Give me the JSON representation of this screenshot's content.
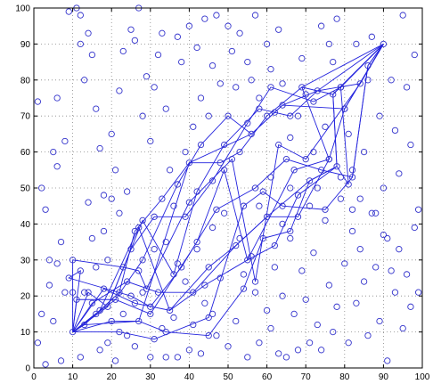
{
  "chart_data": {
    "type": "scatter",
    "title": "",
    "xlabel": "",
    "ylabel": "",
    "xlim": [
      0,
      100
    ],
    "ylim": [
      0,
      100
    ],
    "x_ticks": [
      0,
      10,
      20,
      30,
      40,
      50,
      60,
      70,
      80,
      90,
      100
    ],
    "y_ticks": [
      0,
      10,
      20,
      30,
      40,
      50,
      60,
      70,
      80,
      90,
      100
    ],
    "grid": true,
    "colors": {
      "marker": "#3333cc",
      "line": "#2222dd",
      "grid": "#888888",
      "axes": "#000000"
    },
    "hubs": {
      "start": [
        10,
        10
      ],
      "end": [
        90,
        90
      ]
    },
    "points": [
      [
        1,
        74
      ],
      [
        2,
        50
      ],
      [
        3,
        44
      ],
      [
        4,
        30
      ],
      [
        5,
        60
      ],
      [
        6,
        56
      ],
      [
        6,
        75
      ],
      [
        7,
        35
      ],
      [
        8,
        63
      ],
      [
        9,
        99
      ],
      [
        10,
        21
      ],
      [
        11,
        100
      ],
      [
        12,
        98
      ],
      [
        12,
        90
      ],
      [
        13,
        80
      ],
      [
        14,
        93
      ],
      [
        15,
        87
      ],
      [
        16,
        72
      ],
      [
        17,
        61
      ],
      [
        18,
        38
      ],
      [
        19,
        30
      ],
      [
        20,
        65
      ],
      [
        21,
        55
      ],
      [
        22,
        77
      ],
      [
        23,
        88
      ],
      [
        24,
        49
      ],
      [
        25,
        94
      ],
      [
        26,
        91
      ],
      [
        27,
        100
      ],
      [
        28,
        70
      ],
      [
        29,
        81
      ],
      [
        30,
        63
      ],
      [
        31,
        78
      ],
      [
        32,
        87
      ],
      [
        33,
        93
      ],
      [
        34,
        72
      ],
      [
        35,
        55
      ],
      [
        36,
        45
      ],
      [
        37,
        92
      ],
      [
        38,
        85
      ],
      [
        39,
        60
      ],
      [
        40,
        95
      ],
      [
        41,
        67
      ],
      [
        42,
        89
      ],
      [
        43,
        75
      ],
      [
        44,
        97
      ],
      [
        45,
        70
      ],
      [
        46,
        84
      ],
      [
        47,
        98
      ],
      [
        48,
        79
      ],
      [
        50,
        95
      ],
      [
        51,
        88
      ],
      [
        52,
        78
      ],
      [
        53,
        93
      ],
      [
        55,
        85
      ],
      [
        56,
        80
      ],
      [
        57,
        98
      ],
      [
        58,
        75
      ],
      [
        60,
        90
      ],
      [
        61,
        83
      ],
      [
        62,
        71
      ],
      [
        63,
        94
      ],
      [
        64,
        79
      ],
      [
        66,
        64
      ],
      [
        68,
        70
      ],
      [
        69,
        86
      ],
      [
        70,
        76
      ],
      [
        72,
        60
      ],
      [
        74,
        95
      ],
      [
        75,
        67
      ],
      [
        76,
        90
      ],
      [
        77,
        85
      ],
      [
        78,
        97
      ],
      [
        79,
        78
      ],
      [
        80,
        72
      ],
      [
        81,
        65
      ],
      [
        82,
        55
      ],
      [
        83,
        90
      ],
      [
        84,
        47
      ],
      [
        85,
        60
      ],
      [
        86,
        80
      ],
      [
        87,
        92
      ],
      [
        88,
        43
      ],
      [
        89,
        70
      ],
      [
        90,
        50
      ],
      [
        91,
        36
      ],
      [
        92,
        80
      ],
      [
        93,
        66
      ],
      [
        94,
        54
      ],
      [
        95,
        98
      ],
      [
        96,
        78
      ],
      [
        97,
        62
      ],
      [
        98,
        87
      ],
      [
        99,
        44
      ],
      [
        1,
        7
      ],
      [
        2,
        15
      ],
      [
        3,
        1
      ],
      [
        4,
        23
      ],
      [
        5,
        13
      ],
      [
        6,
        29
      ],
      [
        7,
        2
      ],
      [
        8,
        21
      ],
      [
        12,
        3
      ],
      [
        13,
        21
      ],
      [
        15,
        36
      ],
      [
        17,
        5
      ],
      [
        19,
        7
      ],
      [
        20,
        47
      ],
      [
        21,
        2
      ],
      [
        23,
        15
      ],
      [
        24,
        9
      ],
      [
        26,
        6
      ],
      [
        28,
        21
      ],
      [
        30,
        3
      ],
      [
        33,
        11
      ],
      [
        34,
        3
      ],
      [
        36,
        14
      ],
      [
        37,
        3
      ],
      [
        39,
        24
      ],
      [
        40,
        5
      ],
      [
        41,
        12
      ],
      [
        43,
        4
      ],
      [
        44,
        18
      ],
      [
        46,
        15
      ],
      [
        47,
        9
      ],
      [
        48,
        25
      ],
      [
        50,
        6
      ],
      [
        52,
        13
      ],
      [
        54,
        26
      ],
      [
        55,
        3
      ],
      [
        57,
        21
      ],
      [
        58,
        7
      ],
      [
        60,
        16
      ],
      [
        61,
        11
      ],
      [
        62,
        28
      ],
      [
        63,
        4
      ],
      [
        64,
        20
      ],
      [
        65,
        3
      ],
      [
        66,
        36
      ],
      [
        67,
        15
      ],
      [
        68,
        5
      ],
      [
        69,
        27
      ],
      [
        70,
        19
      ],
      [
        71,
        7
      ],
      [
        72,
        32
      ],
      [
        73,
        12
      ],
      [
        74,
        5
      ],
      [
        75,
        41
      ],
      [
        76,
        23
      ],
      [
        77,
        10
      ],
      [
        78,
        17
      ],
      [
        79,
        47
      ],
      [
        80,
        29
      ],
      [
        81,
        7
      ],
      [
        82,
        38
      ],
      [
        83,
        18
      ],
      [
        84,
        33
      ],
      [
        85,
        24
      ],
      [
        86,
        9
      ],
      [
        87,
        43
      ],
      [
        88,
        28
      ],
      [
        89,
        13
      ],
      [
        90,
        37
      ],
      [
        91,
        2
      ],
      [
        92,
        27
      ],
      [
        93,
        21
      ],
      [
        94,
        33
      ],
      [
        95,
        11
      ],
      [
        96,
        26
      ],
      [
        97,
        17
      ],
      [
        98,
        39
      ],
      [
        99,
        21
      ],
      [
        14,
        46
      ],
      [
        16,
        28
      ],
      [
        18,
        48
      ],
      [
        22,
        43
      ],
      [
        27,
        39
      ],
      [
        31,
        33
      ],
      [
        34,
        35
      ],
      [
        37,
        29
      ],
      [
        42,
        33
      ],
      [
        46,
        39
      ],
      [
        49,
        43
      ],
      [
        53,
        36
      ],
      [
        56,
        31
      ],
      [
        58,
        45
      ],
      [
        61,
        53
      ],
      [
        64,
        40
      ],
      [
        66,
        50
      ],
      [
        68,
        48
      ],
      [
        71,
        45
      ],
      [
        73,
        50
      ],
      [
        76,
        58
      ],
      [
        79,
        53
      ],
      [
        82,
        44
      ]
    ],
    "path_nodes": [
      [
        9,
        25
      ],
      [
        10,
        30
      ],
      [
        11,
        19
      ],
      [
        12,
        27
      ],
      [
        13,
        12
      ],
      [
        14,
        21
      ],
      [
        15,
        18
      ],
      [
        16,
        15
      ],
      [
        17,
        16
      ],
      [
        18,
        22
      ],
      [
        19,
        17
      ],
      [
        20,
        13
      ],
      [
        21,
        19
      ],
      [
        22,
        21
      ],
      [
        22,
        10
      ],
      [
        23,
        28
      ],
      [
        24,
        24
      ],
      [
        25,
        33
      ],
      [
        25,
        20
      ],
      [
        26,
        38
      ],
      [
        26,
        18
      ],
      [
        27,
        13
      ],
      [
        27,
        27
      ],
      [
        28,
        30
      ],
      [
        28,
        41
      ],
      [
        29,
        22
      ],
      [
        30,
        15
      ],
      [
        30,
        17
      ],
      [
        31,
        8
      ],
      [
        31,
        42
      ],
      [
        32,
        21
      ],
      [
        33,
        47
      ],
      [
        34,
        10
      ],
      [
        35,
        16
      ],
      [
        36,
        26
      ],
      [
        37,
        51
      ],
      [
        38,
        28
      ],
      [
        39,
        42
      ],
      [
        40,
        46
      ],
      [
        40,
        57
      ],
      [
        41,
        21
      ],
      [
        42,
        35
      ],
      [
        42,
        49
      ],
      [
        43,
        62
      ],
      [
        44,
        23
      ],
      [
        45,
        14
      ],
      [
        45,
        9
      ],
      [
        45,
        28
      ],
      [
        46,
        52
      ],
      [
        47,
        44
      ],
      [
        48,
        57
      ],
      [
        49,
        55
      ],
      [
        49,
        62
      ],
      [
        50,
        70
      ],
      [
        51,
        58
      ],
      [
        52,
        34
      ],
      [
        53,
        60
      ],
      [
        54,
        22
      ],
      [
        54,
        45
      ],
      [
        55,
        30
      ],
      [
        55,
        68
      ],
      [
        56,
        65
      ],
      [
        57,
        24
      ],
      [
        57,
        50
      ],
      [
        58,
        72
      ],
      [
        59,
        49
      ],
      [
        59,
        36
      ],
      [
        60,
        70
      ],
      [
        60,
        42
      ],
      [
        61,
        78
      ],
      [
        62,
        34
      ],
      [
        63,
        62
      ],
      [
        64,
        45
      ],
      [
        64,
        73
      ],
      [
        65,
        58
      ],
      [
        66,
        38
      ],
      [
        66,
        70
      ],
      [
        67,
        55
      ],
      [
        68,
        42
      ],
      [
        69,
        78
      ],
      [
        70,
        58
      ],
      [
        71,
        52
      ],
      [
        72,
        74
      ],
      [
        73,
        77
      ],
      [
        74,
        55
      ],
      [
        75,
        44
      ],
      [
        76,
        58
      ],
      [
        77,
        76
      ],
      [
        78,
        56
      ],
      [
        79,
        78
      ],
      [
        80,
        72
      ],
      [
        81,
        51
      ],
      [
        82,
        53
      ],
      [
        84,
        79
      ],
      [
        86,
        84
      ]
    ],
    "paths": [
      [
        [
          10,
          10
        ],
        [
          13,
          12
        ],
        [
          17,
          16
        ],
        [
          22,
          21
        ],
        [
          26,
          38
        ],
        [
          33,
          47
        ],
        [
          40,
          57
        ],
        [
          48,
          57
        ],
        [
          53,
          60
        ],
        [
          60,
          70
        ],
        [
          69,
          78
        ],
        [
          77,
          76
        ],
        [
          90,
          90
        ]
      ],
      [
        [
          10,
          10
        ],
        [
          16,
          15
        ],
        [
          21,
          19
        ],
        [
          28,
          30
        ],
        [
          37,
          51
        ],
        [
          43,
          62
        ],
        [
          50,
          70
        ],
        [
          56,
          65
        ],
        [
          64,
          73
        ],
        [
          73,
          77
        ],
        [
          84,
          79
        ],
        [
          90,
          90
        ]
      ],
      [
        [
          10,
          10
        ],
        [
          14,
          21
        ],
        [
          19,
          17
        ],
        [
          25,
          33
        ],
        [
          31,
          42
        ],
        [
          39,
          42
        ],
        [
          46,
          52
        ],
        [
          55,
          68
        ],
        [
          61,
          78
        ],
        [
          72,
          74
        ],
        [
          79,
          78
        ],
        [
          90,
          90
        ]
      ],
      [
        [
          10,
          10
        ],
        [
          20,
          13
        ],
        [
          27,
          13
        ],
        [
          34,
          10
        ],
        [
          45,
          9
        ],
        [
          54,
          22
        ],
        [
          59,
          36
        ],
        [
          66,
          38
        ],
        [
          71,
          52
        ],
        [
          78,
          56
        ],
        [
          77,
          76
        ],
        [
          90,
          90
        ]
      ],
      [
        [
          10,
          10
        ],
        [
          15,
          18
        ],
        [
          24,
          24
        ],
        [
          32,
          21
        ],
        [
          41,
          21
        ],
        [
          52,
          34
        ],
        [
          60,
          42
        ],
        [
          68,
          42
        ],
        [
          76,
          58
        ],
        [
          80,
          72
        ],
        [
          90,
          90
        ]
      ],
      [
        [
          10,
          10
        ],
        [
          12,
          27
        ],
        [
          9,
          25
        ],
        [
          25,
          20
        ],
        [
          30,
          17
        ],
        [
          38,
          28
        ],
        [
          47,
          44
        ],
        [
          57,
          50
        ],
        [
          65,
          58
        ],
        [
          74,
          55
        ],
        [
          82,
          53
        ],
        [
          86,
          84
        ],
        [
          90,
          90
        ]
      ],
      [
        [
          10,
          10
        ],
        [
          18,
          22
        ],
        [
          26,
          18
        ],
        [
          35,
          16
        ],
        [
          44,
          23
        ],
        [
          55,
          30
        ],
        [
          62,
          34
        ],
        [
          68,
          48
        ],
        [
          78,
          56
        ],
        [
          81,
          51
        ],
        [
          79,
          78
        ],
        [
          90,
          90
        ]
      ],
      [
        [
          10,
          10
        ],
        [
          22,
          10
        ],
        [
          31,
          8
        ],
        [
          45,
          14
        ],
        [
          54,
          45
        ],
        [
          59,
          49
        ],
        [
          64,
          45
        ],
        [
          75,
          44
        ],
        [
          82,
          53
        ],
        [
          86,
          84
        ],
        [
          90,
          90
        ]
      ],
      [
        [
          10,
          10
        ],
        [
          19,
          17
        ],
        [
          28,
          41
        ],
        [
          36,
          26
        ],
        [
          42,
          49
        ],
        [
          49,
          62
        ],
        [
          58,
          72
        ],
        [
          66,
          70
        ],
        [
          73,
          77
        ],
        [
          90,
          90
        ]
      ],
      [
        [
          10,
          10
        ],
        [
          10,
          30
        ],
        [
          23,
          28
        ],
        [
          27,
          27
        ],
        [
          29,
          22
        ],
        [
          40,
          46
        ],
        [
          51,
          58
        ],
        [
          57,
          24
        ],
        [
          63,
          62
        ],
        [
          70,
          58
        ],
        [
          84,
          79
        ],
        [
          90,
          90
        ]
      ],
      [
        [
          10,
          10
        ],
        [
          11,
          19
        ],
        [
          21,
          19
        ],
        [
          30,
          15
        ],
        [
          42,
          35
        ],
        [
          49,
          55
        ],
        [
          55,
          30
        ],
        [
          67,
          55
        ],
        [
          76,
          58
        ],
        [
          69,
          78
        ],
        [
          90,
          90
        ]
      ],
      [
        [
          10,
          10
        ],
        [
          17,
          16
        ],
        [
          27,
          39
        ],
        [
          35,
          16
        ],
        [
          45,
          28
        ],
        [
          52,
          34
        ],
        [
          60,
          42
        ],
        [
          71,
          52
        ],
        [
          78,
          56
        ],
        [
          77,
          76
        ],
        [
          90,
          90
        ]
      ],
      [
        [
          10,
          10
        ],
        [
          13,
          12
        ],
        [
          27,
          13
        ],
        [
          40,
          57
        ],
        [
          56,
          65
        ],
        [
          64,
          73
        ],
        [
          80,
          72
        ],
        [
          90,
          90
        ]
      ]
    ]
  },
  "axes": {
    "x_tick_labels": [
      "0",
      "10",
      "20",
      "30",
      "40",
      "50",
      "60",
      "70",
      "80",
      "90",
      "100"
    ],
    "y_tick_labels": [
      "0",
      "10",
      "20",
      "30",
      "40",
      "50",
      "60",
      "70",
      "80",
      "90",
      "100"
    ]
  }
}
